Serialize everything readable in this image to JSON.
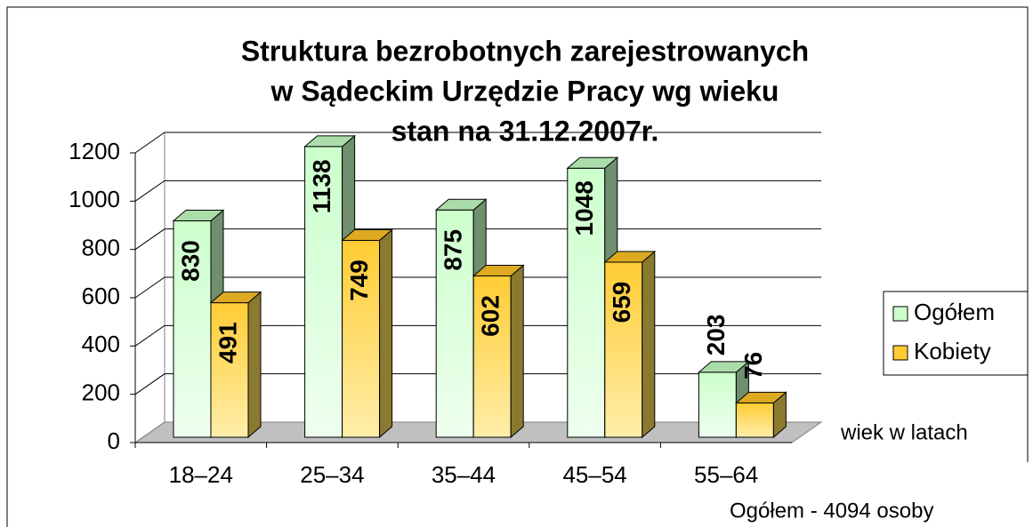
{
  "chart_data": {
    "type": "bar3d",
    "title": [
      "Struktura bezrobotnych zarejestrowanych",
      "w Sądeckim Urzędzie Pracy wg wieku",
      "stan na 31.12.2007r."
    ],
    "categories": [
      "18–24",
      "25–34",
      "35–44",
      "45–54",
      "55–64"
    ],
    "series": [
      {
        "name": "Ogółem",
        "color": "#ccffcc",
        "values": [
          830,
          1138,
          875,
          1048,
          203
        ]
      },
      {
        "name": "Kobiety",
        "color": "#ffcc33",
        "values": [
          491,
          749,
          602,
          659,
          76
        ]
      }
    ],
    "ylim": [
      0,
      1200
    ],
    "yticks": [
      0,
      200,
      400,
      600,
      800,
      1000,
      1200
    ],
    "grid": true,
    "legend": "right",
    "x_label": "wiek w latach",
    "annotation": "Ogółem - 4094 osoby"
  }
}
